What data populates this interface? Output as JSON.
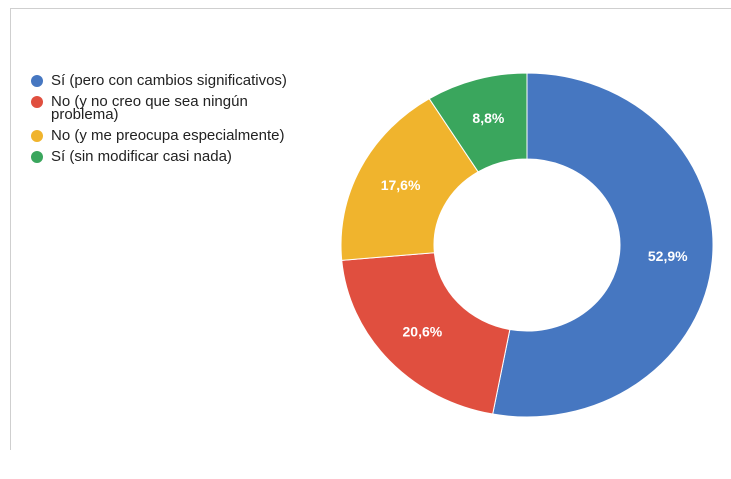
{
  "chart_data": {
    "type": "donut",
    "categories": [
      "Sí (pero con cambios significativos)",
      "No (y no creo que sea ningún problema)",
      "No (y me preocupa especialmente)",
      "Sí (sin modificar casi nada)"
    ],
    "values": [
      52.9,
      20.6,
      17.6,
      8.8
    ],
    "value_labels": [
      "52,9%",
      "20,6%",
      "17,6%",
      "8,8%"
    ],
    "colors": [
      "#4677c1",
      "#e04f3f",
      "#f0b42d",
      "#3aa65d"
    ],
    "legend": "left"
  }
}
